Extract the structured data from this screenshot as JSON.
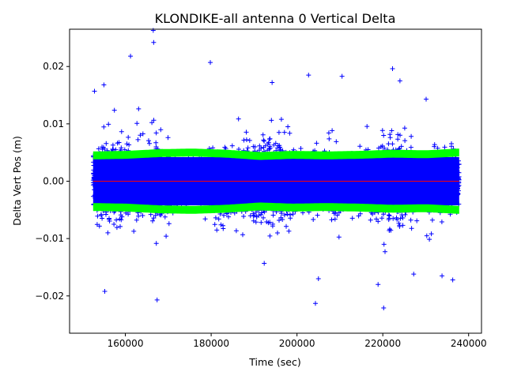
{
  "chart_data": {
    "type": "scatter",
    "title": "KLONDIKE-all antenna 0 Vertical Delta",
    "xlabel": "Time (sec)",
    "ylabel": "Delta Vert Pos (m)",
    "xlim": [
      147000,
      243000
    ],
    "ylim": [
      -0.0265,
      0.0265
    ],
    "x_ticks": [
      160000,
      180000,
      200000,
      220000,
      240000
    ],
    "x_tick_labels": [
      "160000",
      "180000",
      "200000",
      "220000",
      "240000"
    ],
    "y_ticks": [
      -0.02,
      -0.01,
      0.0,
      0.01,
      0.02
    ],
    "y_tick_labels": [
      "−0.02",
      "−0.01",
      "0.00",
      "0.01",
      "0.02"
    ],
    "grid": false,
    "x_range_data": [
      152500,
      237800
    ],
    "series": [
      {
        "marker": "+",
        "color": "#0000ff",
        "description_points": "delta vertical position samples, mostly within about ±0.01 m with spikes",
        "outliers": [
          {
            "x": 166500,
            "y": 0.0263
          },
          {
            "x": 166600,
            "y": 0.0242
          },
          {
            "x": 161200,
            "y": 0.0218
          },
          {
            "x": 179800,
            "y": 0.0207
          },
          {
            "x": 202700,
            "y": 0.0185
          },
          {
            "x": 210500,
            "y": 0.0183
          },
          {
            "x": 224000,
            "y": 0.0175
          },
          {
            "x": 194200,
            "y": 0.0172
          },
          {
            "x": 155000,
            "y": 0.0168
          },
          {
            "x": 152800,
            "y": 0.0157
          },
          {
            "x": 230100,
            "y": 0.0143
          },
          {
            "x": 167400,
            "y": -0.0207
          },
          {
            "x": 204300,
            "y": -0.0213
          },
          {
            "x": 220200,
            "y": -0.0221
          },
          {
            "x": 155200,
            "y": -0.0192
          },
          {
            "x": 218900,
            "y": -0.018
          },
          {
            "x": 205000,
            "y": -0.017
          },
          {
            "x": 236300,
            "y": -0.0172
          },
          {
            "x": 233800,
            "y": -0.0165
          },
          {
            "x": 227200,
            "y": -0.0162
          }
        ]
      },
      {
        "marker": "line",
        "color": "#00ff00",
        "description_points": "upper and lower sigma bands around ±0.0045 m",
        "upper": [
          0.0045,
          0.0046,
          0.0049,
          0.005,
          0.0048,
          0.0044,
          0.0046,
          0.0045,
          0.0046,
          0.0048,
          0.0047,
          0.005
        ],
        "lower": [
          -0.0045,
          -0.0046,
          -0.0049,
          -0.005,
          -0.0048,
          -0.0044,
          -0.0046,
          -0.0045,
          -0.0046,
          -0.0048,
          -0.0047,
          -0.005
        ]
      },
      {
        "marker": "line",
        "color": "#ff0000",
        "description_points": "zero reference line",
        "y": 0.0
      }
    ]
  }
}
